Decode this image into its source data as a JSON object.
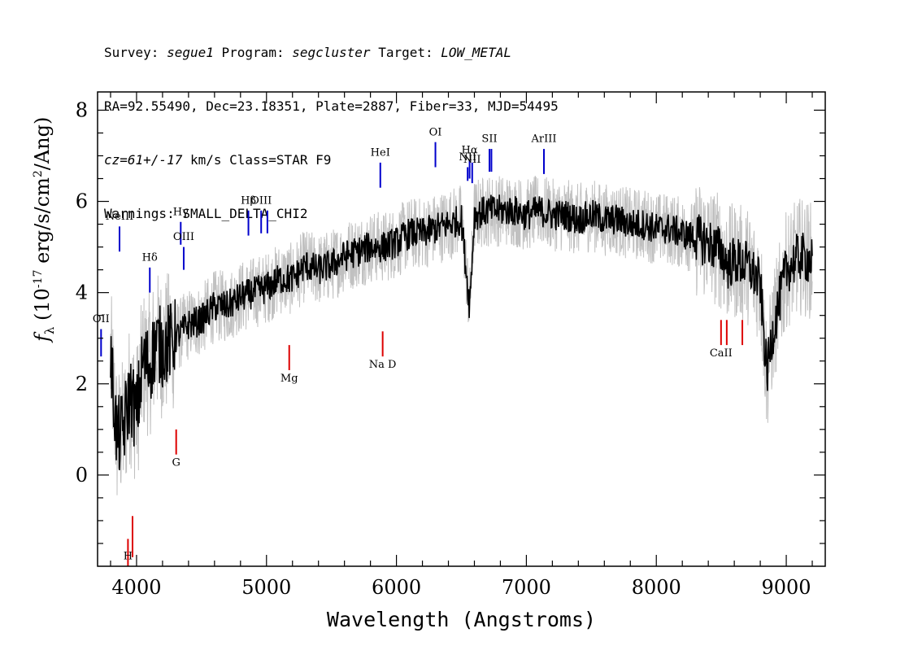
{
  "header": {
    "survey_label": "Survey:",
    "survey": "segue1",
    "program_label": "Program:",
    "program": "segcluster",
    "target_label": "Target:",
    "target": "LOW_METAL",
    "line2": "RA=92.55490, Dec=23.18351, Plate=2887, Fiber=33, MJD=54495",
    "cz": "cz=61+/-17",
    "line3_rest": " km/s Class=STAR F9",
    "line4": "Warnings: SMALL_DELTA_CHI2"
  },
  "chart_data": {
    "type": "line",
    "xlabel": "Wavelength (Angstroms)",
    "ylabel": "f_λ (10^-17 erg/s/cm^2/Ang)",
    "xlim": [
      3700,
      9300
    ],
    "ylim": [
      -2,
      8.4
    ],
    "xticks": [
      4000,
      5000,
      6000,
      7000,
      8000,
      9000
    ],
    "yticks": [
      0,
      2,
      4,
      6,
      8
    ],
    "grid": false,
    "series": [
      {
        "color": "#000000",
        "x": [
          3800,
          3850,
          3900,
          3950,
          4000,
          4050,
          4100,
          4150,
          4200,
          4300,
          4400,
          4500,
          4600,
          4700,
          4800,
          4900,
          5000,
          5100,
          5200,
          5300,
          5400,
          5500,
          5600,
          5700,
          5800,
          5900,
          6000,
          6100,
          6200,
          6300,
          6400,
          6500,
          6563,
          6600,
          6700,
          6800,
          6900,
          7000,
          7100,
          7200,
          7300,
          7400,
          7500,
          7600,
          7700,
          7800,
          7900,
          8000,
          8100,
          8200,
          8300,
          8400,
          8500,
          8550,
          8600,
          8700,
          8800,
          8850,
          8900,
          9000,
          9100,
          9200
        ],
        "y": [
          2.6,
          0.8,
          1.0,
          1.8,
          1.3,
          2.5,
          2.4,
          2.9,
          2.8,
          3.0,
          3.3,
          3.4,
          3.7,
          3.7,
          3.9,
          4.0,
          4.1,
          4.3,
          4.3,
          4.6,
          4.5,
          4.6,
          4.8,
          4.9,
          5.0,
          5.0,
          5.1,
          5.3,
          5.3,
          5.4,
          5.5,
          5.6,
          3.7,
          5.7,
          5.8,
          5.8,
          5.8,
          5.7,
          5.8,
          5.7,
          5.7,
          5.6,
          5.7,
          5.6,
          5.6,
          5.5,
          5.5,
          5.4,
          5.4,
          5.3,
          5.2,
          5.1,
          4.9,
          4.6,
          4.7,
          4.6,
          4.2,
          2.2,
          3.2,
          4.5,
          4.8,
          4.7
        ]
      }
    ],
    "noise_color": "#c0c0c0",
    "lines": [
      {
        "label": "OII",
        "x": 3727,
        "color": "#0000cc",
        "y0": 2.6,
        "y1": 3.2,
        "label_y": 3.35
      },
      {
        "label": "NeIII",
        "x": 3869,
        "color": "#0000cc",
        "y0": 4.9,
        "y1": 5.45,
        "label_y": 5.6
      },
      {
        "label": "Hδ",
        "x": 4102,
        "color": "#0000cc",
        "y0": 4.0,
        "y1": 4.55,
        "label_y": 4.7
      },
      {
        "label": "Hγ",
        "x": 4340,
        "color": "#0000cc",
        "y0": 5.05,
        "y1": 5.55,
        "label_y": 5.7
      },
      {
        "label": "OIII",
        "x": 4363,
        "color": "#0000cc",
        "y0": 4.5,
        "y1": 5.0,
        "label_y": 5.15
      },
      {
        "label": "Hβ",
        "x": 4861,
        "color": "#0000cc",
        "y0": 5.25,
        "y1": 5.8,
        "label_y": 5.95
      },
      {
        "label": "OIII",
        "x": 4959,
        "color": "#0000cc",
        "y0": 5.3,
        "y1": 5.8,
        "label_y": 5.95
      },
      {
        "label": "",
        "x": 5007,
        "color": "#0000cc",
        "y0": 5.3,
        "y1": 5.8,
        "label_y": 5.95
      },
      {
        "label": "HeI",
        "x": 5876,
        "color": "#0000cc",
        "y0": 6.3,
        "y1": 6.85,
        "label_y": 7.0
      },
      {
        "label": "OI",
        "x": 6300,
        "color": "#0000cc",
        "y0": 6.75,
        "y1": 7.3,
        "label_y": 7.45
      },
      {
        "label": "NII",
        "x": 6548,
        "color": "#0000cc",
        "y0": 6.45,
        "y1": 6.75,
        "label_y": 6.9
      },
      {
        "label": "Hα",
        "x": 6563,
        "color": "#0000cc",
        "y0": 6.5,
        "y1": 6.9,
        "label_y": 7.05
      },
      {
        "label": "NII",
        "x": 6583,
        "color": "#0000cc",
        "y0": 6.4,
        "y1": 6.85,
        "label_y": 6.85
      },
      {
        "label": "SII",
        "x": 6716,
        "color": "#0000cc",
        "y0": 6.65,
        "y1": 7.15,
        "label_y": 7.3
      },
      {
        "label": "",
        "x": 6731,
        "color": "#0000cc",
        "y0": 6.65,
        "y1": 7.15,
        "label_y": 7.3
      },
      {
        "label": "ArIII",
        "x": 7135,
        "color": "#0000cc",
        "y0": 6.6,
        "y1": 7.15,
        "label_y": 7.3
      },
      {
        "label": "H",
        "x": 3934,
        "color": "#dd0000",
        "y0": -2.0,
        "y1": -1.4,
        "label_y": -1.85
      },
      {
        "label": "",
        "x": 3969,
        "color": "#dd0000",
        "y0": -1.8,
        "y1": -0.9,
        "label_y": -1.85
      },
      {
        "label": "G",
        "x": 4305,
        "color": "#dd0000",
        "y0": 0.45,
        "y1": 1.0,
        "label_y": 0.2
      },
      {
        "label": "Mg",
        "x": 5175,
        "color": "#dd0000",
        "y0": 2.3,
        "y1": 2.85,
        "label_y": 2.05
      },
      {
        "label": "Na D",
        "x": 5894,
        "color": "#dd0000",
        "y0": 2.6,
        "y1": 3.15,
        "label_y": 2.35
      },
      {
        "label": "CaII",
        "x": 8498,
        "color": "#dd0000",
        "y0": 2.85,
        "y1": 3.4,
        "label_y": 2.6
      },
      {
        "label": "",
        "x": 8542,
        "color": "#dd0000",
        "y0": 2.85,
        "y1": 3.4,
        "label_y": 2.6
      },
      {
        "label": "",
        "x": 8662,
        "color": "#dd0000",
        "y0": 2.85,
        "y1": 3.4,
        "label_y": 2.6
      }
    ]
  }
}
